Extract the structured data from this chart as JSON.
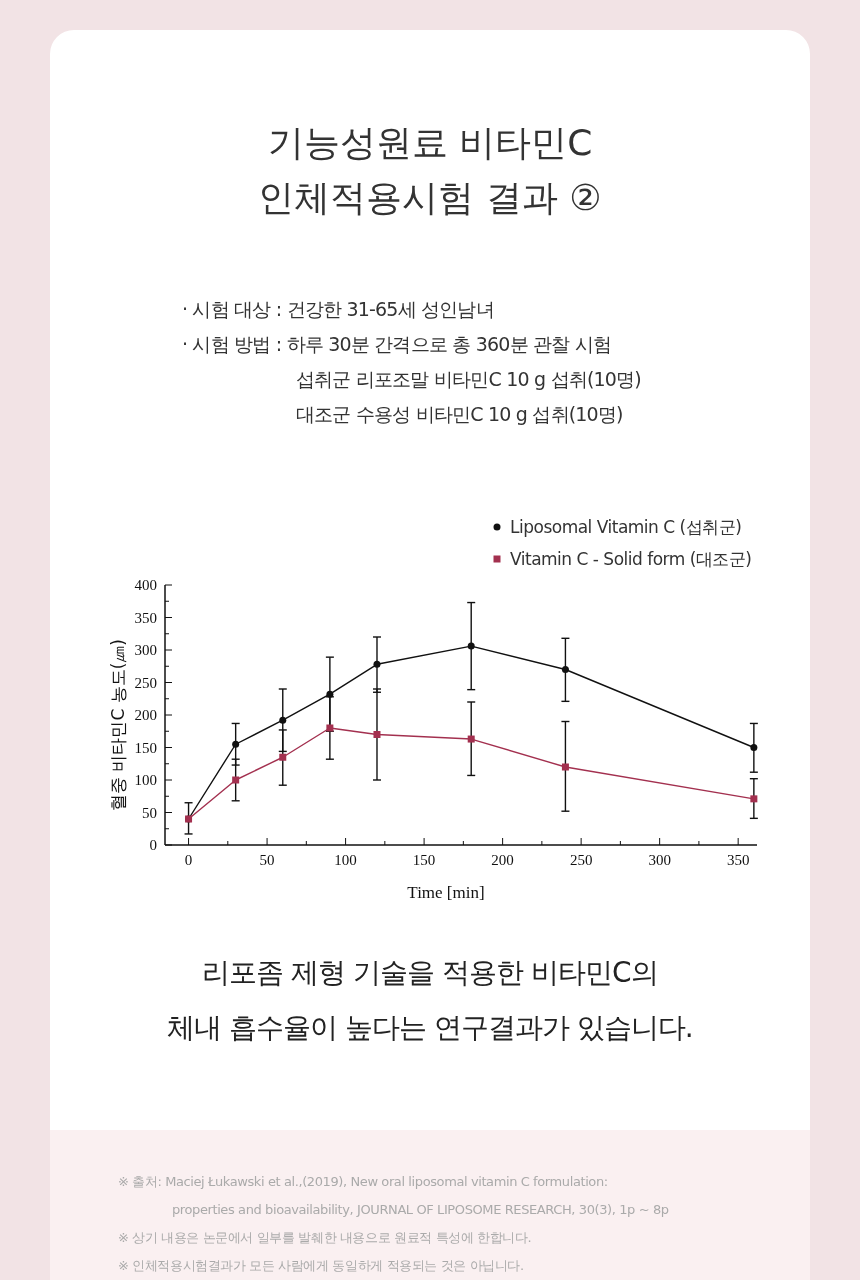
{
  "chart_data": {
    "type": "line",
    "title": "기능성원료 비타민C\n인체적용시험 결과 ②",
    "xlabel": "Time [min]",
    "ylabel": "혈중 비타민C 농도(㎛)",
    "x": [
      0,
      30,
      60,
      90,
      120,
      180,
      240,
      360
    ],
    "series": [
      {
        "name": "Liposomal Vitamin C (섭취군)",
        "color": "#111111",
        "marker": "circle",
        "values": [
          40,
          155,
          192,
          232,
          278,
          306,
          270,
          150
        ],
        "errors": [
          [
            17,
            65
          ],
          [
            123,
            187
          ],
          [
            144,
            240
          ],
          [
            175,
            289
          ],
          [
            235,
            320
          ],
          [
            239,
            373
          ],
          [
            221,
            318
          ],
          [
            112,
            187
          ]
        ]
      },
      {
        "name": "Vitamin C - Solid form (대조군)",
        "color": "#a3304f",
        "marker": "square",
        "values": [
          40,
          100,
          135,
          180,
          170,
          163,
          120,
          71
        ],
        "errors": [
          null,
          [
            68,
            132
          ],
          [
            92,
            177
          ],
          [
            132,
            228
          ],
          [
            100,
            240
          ],
          [
            107,
            220
          ],
          [
            52,
            190
          ],
          [
            41,
            102
          ]
        ]
      }
    ],
    "xlim": [
      -15,
      362
    ],
    "xticks": [
      0,
      {
        "value": 25,
        "label": null
      },
      50,
      {
        "value": 75,
        "label": null
      },
      100,
      {
        "value": 125,
        "label": null
      },
      150,
      {
        "value": 175,
        "label": null
      },
      200,
      {
        "value": 225,
        "label": null
      },
      250,
      {
        "value": 275,
        "label": null
      },
      300,
      {
        "value": 325,
        "label": null
      },
      350
    ],
    "ylim": [
      0,
      400
    ],
    "yticks": [
      0,
      {
        "value": 25,
        "label": null
      },
      50,
      {
        "value": 75,
        "label": null
      },
      100,
      {
        "value": 125,
        "label": null
      },
      150,
      {
        "value": 175,
        "label": null
      },
      200,
      {
        "value": 225,
        "label": null
      },
      250,
      {
        "value": 275,
        "label": null
      },
      300,
      {
        "value": 325,
        "label": null
      },
      350,
      {
        "value": 375,
        "label": null
      },
      400
    ],
    "grid": false,
    "legend": "top right",
    "annotations": [
      "· 시험 대상 : 건강한 31-65세 성인남녀",
      "· 시험 방법 : 하루 30분 간격으로 총 360분 관찰 시험",
      "섭취군 리포조말 비타민C 10 g 섭취(10명)",
      "대조군 수용성 비타민C 10 g 섭취(10명)",
      "리포좀 제형 기술을 적용한 비타민C의",
      "체내 흡수율이 높다는 연구결과가 있습니다.",
      "※ 출처: Maciej Łukawski et al.,(2019), New oral liposomal vitamin C formulation:",
      "properties and bioavailability, JOURNAL OF LIPOSOME RESEARCH, 30(3), 1p ~ 8p",
      "※ 상기 내용은 논문에서 일부를 발췌한 내용으로 원료적 특성에 한합니다.",
      "※ 인체적용시험결과가 모든 사람에게 동일하게 적용되는 것은 아닙니다."
    ]
  }
}
